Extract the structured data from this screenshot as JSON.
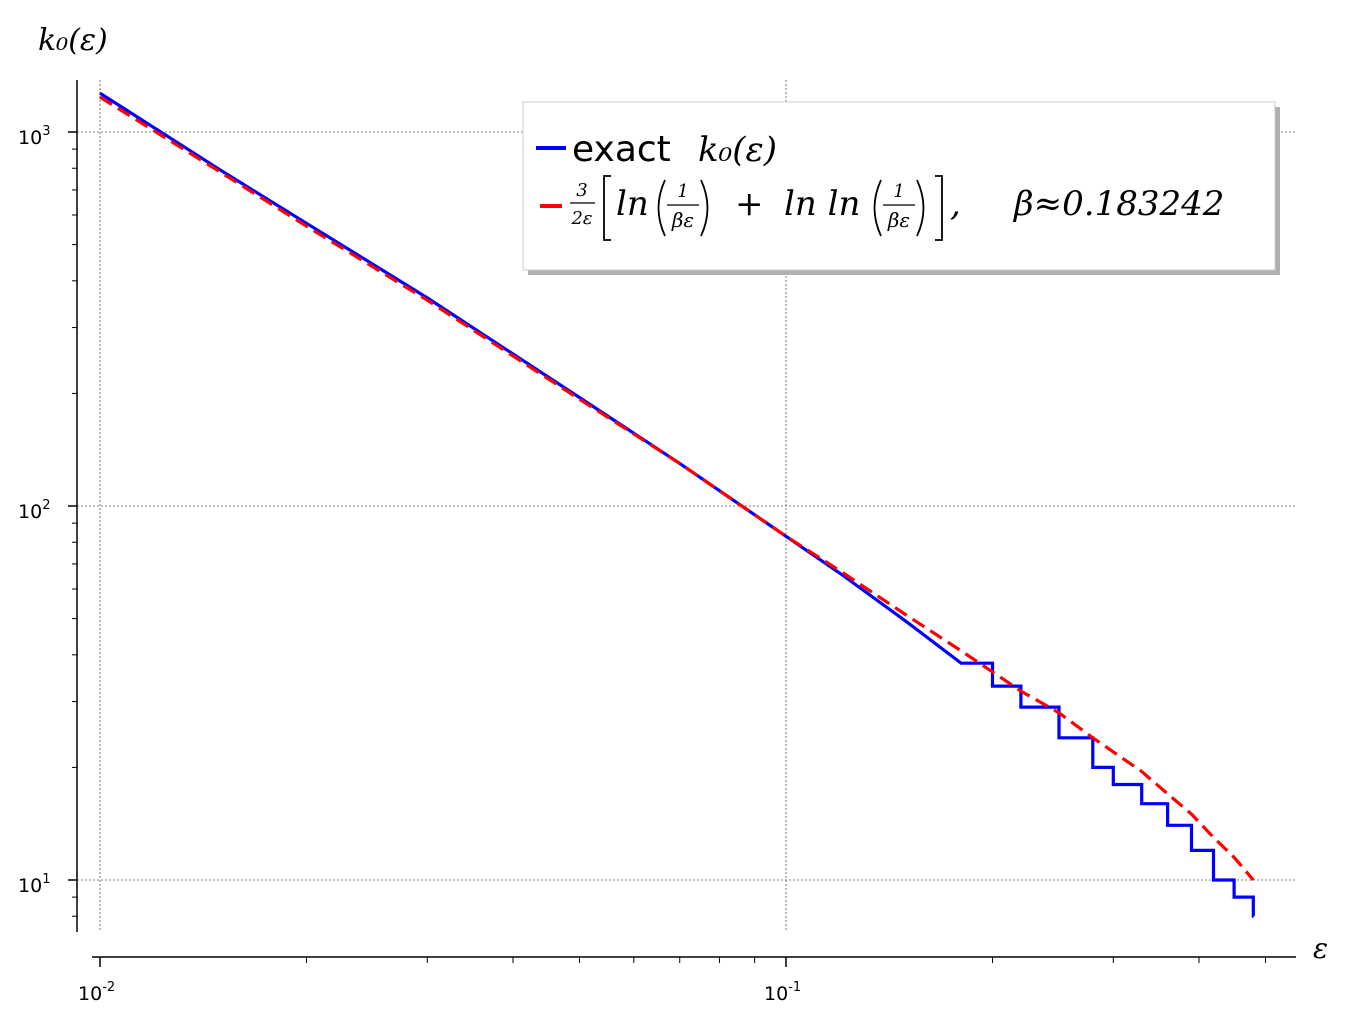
{
  "chart_data": {
    "type": "line",
    "title": "",
    "xlabel": "ε",
    "ylabel": "k₀(ε)",
    "xscale": "log",
    "yscale": "log",
    "xlim": [
      0.01,
      0.5
    ],
    "ylim": [
      7.3,
      1400
    ],
    "grid": true,
    "legend_position": "top-right",
    "x_ticks": [
      {
        "base": "10",
        "exp": "-2",
        "value": 0.01
      },
      {
        "base": "10",
        "exp": "-1",
        "value": 0.1
      }
    ],
    "y_ticks": [
      {
        "base": "10",
        "exp": "3",
        "value": 1000
      },
      {
        "base": "10",
        "exp": "2",
        "value": 100
      },
      {
        "base": "10",
        "exp": "1",
        "value": 10
      }
    ],
    "series": [
      {
        "name": "exact k₀(ε)",
        "color": "#0000ff",
        "style": "solid",
        "x": [
          0.01,
          0.015,
          0.02,
          0.03,
          0.05,
          0.07,
          0.1,
          0.12,
          0.15,
          0.18,
          0.2,
          0.22,
          0.25,
          0.28,
          0.3,
          0.33,
          0.36,
          0.39,
          0.42,
          0.45,
          0.48
        ],
        "y": [
          1270,
          790,
          570,
          360,
          195,
          130,
          83,
          66,
          49,
          38,
          33,
          29,
          24,
          20,
          18,
          16,
          14,
          12,
          10,
          9,
          8
        ]
      },
      {
        "name": "(3/2ε)[ln(1/(βε)) + ln ln(1/(βε))], β≈0.183242",
        "color": "#ff0000",
        "style": "dashed",
        "x": [
          0.01,
          0.015,
          0.02,
          0.03,
          0.05,
          0.07,
          0.1,
          0.12,
          0.15,
          0.18,
          0.2,
          0.22,
          0.25,
          0.28,
          0.3,
          0.33,
          0.36,
          0.39,
          0.42,
          0.45,
          0.48
        ],
        "y": [
          1240,
          780,
          560,
          355,
          193,
          130,
          83,
          67,
          51,
          41,
          36,
          32,
          28,
          24,
          22,
          19.5,
          17,
          15,
          13,
          11.5,
          10
        ]
      }
    ],
    "legend": {
      "entry1": {
        "text": "exact",
        "math": "k₀(ε)"
      },
      "entry2": {
        "prefix_num": "3",
        "prefix_den": "2ε",
        "ln": "ln",
        "lnln": "ln ln",
        "frac_num": "1",
        "frac_den": "βε",
        "beta": "β≈0.183242"
      }
    }
  }
}
